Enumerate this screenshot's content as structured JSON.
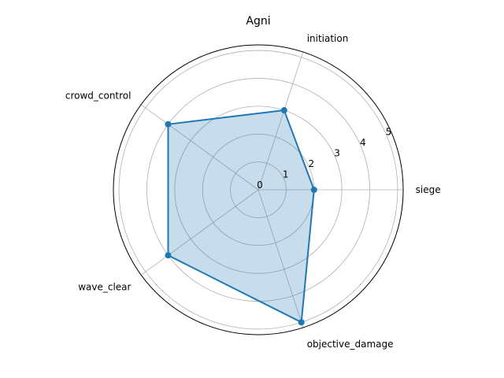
{
  "chart_data": {
    "type": "radar",
    "title": "Agni",
    "categories": [
      "siege",
      "initiation",
      "crowd_control",
      "wave_clear",
      "objective_damage"
    ],
    "series": [
      {
        "values": [
          2,
          3,
          4,
          4,
          5
        ]
      }
    ],
    "rlim": [
      0,
      5.2
    ],
    "rticks": [
      0,
      1,
      2,
      3,
      4,
      5
    ],
    "grid": true,
    "colors": {
      "line": "#1f77b4",
      "fill": "#1f77b4",
      "grid": "#b0b0b0"
    }
  }
}
